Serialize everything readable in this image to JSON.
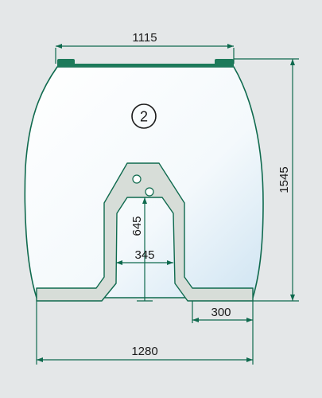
{
  "dimensions": {
    "top_width": "1115",
    "height": "1545",
    "cutout_height": "645",
    "cutout_width": "345",
    "right_step": "300",
    "bottom_width": "1280"
  },
  "position_marker": "2",
  "colors": {
    "background": "#e4e7e8",
    "glass_outline": "#0f6a4e",
    "glass_fill_light": "#ffffff",
    "glass_fill_tint": "#cfe4f2",
    "frame_fill": "#d7ddd8",
    "frame_outline": "#0f6a4e",
    "dimension_line": "#0f6a4e",
    "text": "#1a1a1a"
  }
}
